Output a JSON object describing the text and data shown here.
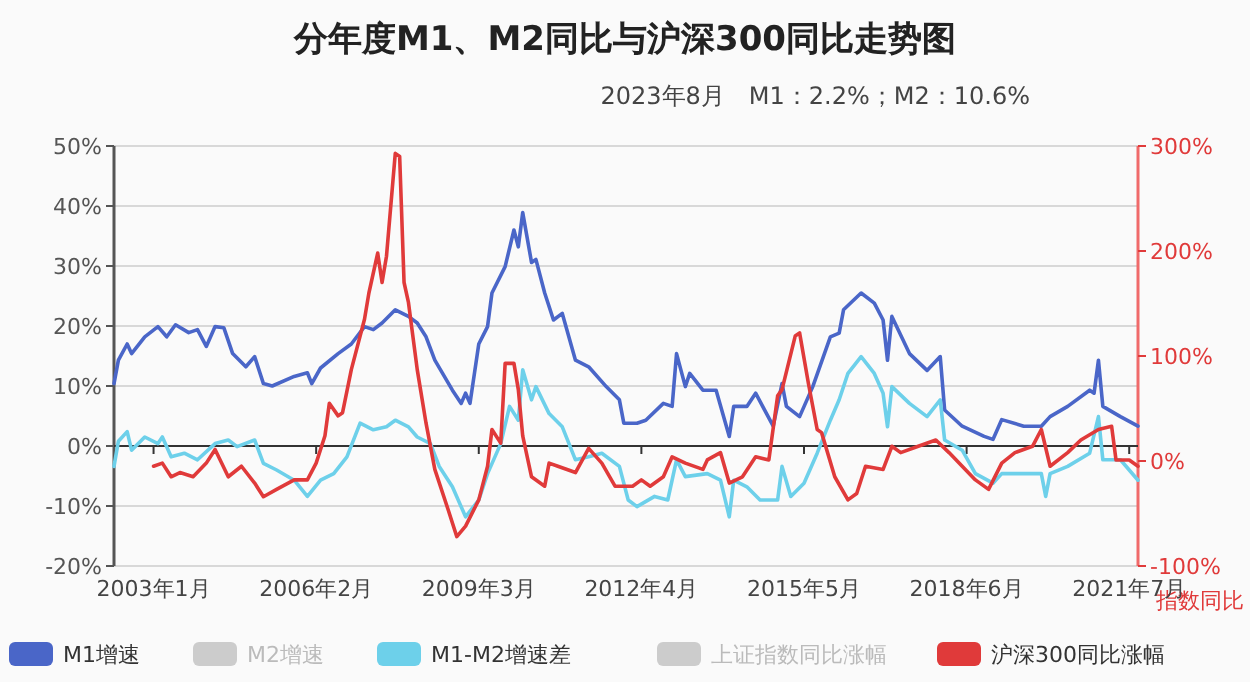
{
  "chart_data": {
    "type": "line",
    "title": "分年度M1、M2同比与沪深300同比走势图",
    "annotations": [
      "2023年8月　M1：2.2%；M2：10.6%"
    ],
    "y2label": "指数同比",
    "xlim": [
      "2002-04",
      "2021-09"
    ],
    "xticks": [
      {
        "value": "2003-01",
        "label": "2003年1月"
      },
      {
        "value": "2006-02",
        "label": "2006年2月"
      },
      {
        "value": "2009-03",
        "label": "2009年3月"
      },
      {
        "value": "2012-04",
        "label": "2012年4月"
      },
      {
        "value": "2015-05",
        "label": "2015年5月"
      },
      {
        "value": "2018-06",
        "label": "2018年6月"
      },
      {
        "value": "2021-07",
        "label": "2021年7月"
      }
    ],
    "ylim": [
      -20,
      50
    ],
    "yticks": [
      {
        "value": -20,
        "label": "-20%"
      },
      {
        "value": -10,
        "label": "-10%"
      },
      {
        "value": 0,
        "label": "0%"
      },
      {
        "value": 10,
        "label": "10%"
      },
      {
        "value": 20,
        "label": "20%"
      },
      {
        "value": 30,
        "label": "30%"
      },
      {
        "value": 40,
        "label": "40%"
      },
      {
        "value": 50,
        "label": "50%"
      }
    ],
    "y2lim": [
      -100,
      300
    ],
    "y2ticks": [
      {
        "value": -100,
        "label": "-100%"
      },
      {
        "value": 0,
        "label": "0%"
      },
      {
        "value": 100,
        "label": "100%"
      },
      {
        "value": 200,
        "label": "200%"
      },
      {
        "value": 300,
        "label": "300%"
      }
    ],
    "grid": "y",
    "legend": "bottom",
    "series": [
      {
        "name": "M1增速",
        "color": "#4a66c8",
        "x": [
          "2002-04",
          "2002-05",
          "2002-07",
          "2002-08",
          "2002-11",
          "2003-02",
          "2003-04",
          "2003-06",
          "2003-09",
          "2003-11",
          "2004-01",
          "2004-03",
          "2004-05",
          "2004-07",
          "2004-10",
          "2004-12",
          "2005-02",
          "2005-04",
          "2005-09",
          "2005-12",
          "2006-01",
          "2006-03",
          "2006-07",
          "2006-10",
          "2007-01",
          "2007-03",
          "2007-05",
          "2007-08",
          "2007-11",
          "2008-01",
          "2008-03",
          "2008-05",
          "2008-09",
          "2008-11",
          "2008-12",
          "2009-01",
          "2009-03",
          "2009-05",
          "2009-06",
          "2009-09",
          "2009-11",
          "2009-12",
          "2010-01",
          "2010-03",
          "2010-04",
          "2010-06",
          "2010-08",
          "2010-10",
          "2011-01",
          "2011-04",
          "2011-08",
          "2011-11",
          "2011-12",
          "2012-03",
          "2012-05",
          "2012-09",
          "2012-11",
          "2012-12",
          "2013-02",
          "2013-03",
          "2013-06",
          "2013-09",
          "2013-12",
          "2014-01",
          "2014-04",
          "2014-06",
          "2014-10",
          "2014-12",
          "2015-01",
          "2015-04",
          "2015-07",
          "2015-11",
          "2016-01",
          "2016-02",
          "2016-06",
          "2016-09",
          "2016-11",
          "2016-12",
          "2017-01",
          "2017-05",
          "2017-09",
          "2017-12",
          "2018-01",
          "2018-05",
          "2018-10",
          "2018-12",
          "2019-02",
          "2019-07",
          "2019-11",
          "2020-01",
          "2020-05",
          "2020-10",
          "2020-11",
          "2020-12",
          "2021-01",
          "2021-05",
          "2021-09"
        ],
        "values": [
          10.4,
          14.3,
          17,
          15.4,
          18.2,
          19.9,
          18.2,
          20.2,
          18.9,
          19.4,
          16.6,
          19.9,
          19.7,
          15.4,
          13.2,
          14.9,
          10.4,
          10,
          11.6,
          12.2,
          10.4,
          13,
          15.4,
          17,
          19.9,
          19.4,
          20.5,
          22.7,
          21.6,
          20.5,
          18.2,
          14.3,
          9.3,
          7.1,
          8.8,
          7.1,
          17,
          19.9,
          25.5,
          29.9,
          36,
          33.2,
          38.9,
          30.6,
          31.1,
          25.5,
          21,
          22.1,
          14.3,
          13.2,
          9.9,
          7.7,
          3.8,
          3.8,
          4.3,
          7.1,
          6.6,
          15.4,
          9.9,
          12.1,
          9.3,
          9.3,
          1.6,
          6.6,
          6.6,
          8.8,
          3.3,
          10.4,
          6.6,
          4.9,
          9.9,
          18.2,
          18.8,
          22.7,
          25.5,
          23.8,
          21,
          14.3,
          21.6,
          15.4,
          12.6,
          14.9,
          6,
          3.3,
          1.6,
          1.1,
          4.4,
          3.3,
          3.3,
          4.9,
          6.6,
          9.3,
          8.8,
          14.3,
          6.6,
          4.9,
          3.3
        ]
      },
      {
        "name": "M2增速",
        "color": "#cccccc"
      },
      {
        "name": "M1-M2增速差",
        "color": "#6dd0ea",
        "x": [
          "2002-04",
          "2002-05",
          "2002-07",
          "2002-08",
          "2002-11",
          "2003-02",
          "2003-03",
          "2003-05",
          "2003-08",
          "2003-11",
          "2004-03",
          "2004-06",
          "2004-08",
          "2004-12",
          "2005-02",
          "2005-05",
          "2005-09",
          "2005-12",
          "2006-03",
          "2006-06",
          "2006-09",
          "2006-12",
          "2007-03",
          "2007-06",
          "2007-08",
          "2007-11",
          "2008-01",
          "2008-04",
          "2008-06",
          "2008-09",
          "2008-12",
          "2009-03",
          "2009-05",
          "2009-08",
          "2009-10",
          "2009-12",
          "2010-01",
          "2010-03",
          "2010-04",
          "2010-07",
          "2010-10",
          "2011-01",
          "2011-04",
          "2011-07",
          "2011-11",
          "2012-01",
          "2012-03",
          "2012-07",
          "2012-10",
          "2012-12",
          "2013-02",
          "2013-07",
          "2013-10",
          "2013-12",
          "2014-01",
          "2014-04",
          "2014-07",
          "2014-11",
          "2014-12",
          "2015-02",
          "2015-05",
          "2015-08",
          "2015-11",
          "2016-01",
          "2016-03",
          "2016-06",
          "2016-09",
          "2016-11",
          "2016-12",
          "2017-01",
          "2017-05",
          "2017-09",
          "2017-12",
          "2018-01",
          "2018-05",
          "2018-08",
          "2018-12",
          "2019-02",
          "2019-07",
          "2019-11",
          "2019-12",
          "2020-01",
          "2020-05",
          "2020-10",
          "2020-12",
          "2021-01",
          "2021-05",
          "2021-09"
        ],
        "values": [
          -3.4,
          0.8,
          2.4,
          -0.7,
          1.5,
          0.4,
          1.5,
          -1.8,
          -1.2,
          -2.3,
          0.4,
          1,
          -0.1,
          1,
          -2.9,
          -4,
          -5.7,
          -8.4,
          -5.7,
          -4.6,
          -1.8,
          3.8,
          2.7,
          3.2,
          4.3,
          3.2,
          1.5,
          0.4,
          -3.4,
          -6.8,
          -11.8,
          -9,
          -4.6,
          0.4,
          6.6,
          4.3,
          12.7,
          7.7,
          9.9,
          5.4,
          3.2,
          -2.3,
          -1.8,
          -1.2,
          -3.4,
          -9,
          -10.1,
          -8.4,
          -9,
          -2.3,
          -5.1,
          -4.6,
          -5.7,
          -11.8,
          -5.7,
          -6.8,
          -9,
          -9,
          -3.4,
          -8.4,
          -6.2,
          -1.2,
          4.3,
          7.7,
          12.1,
          14.9,
          12.1,
          8.8,
          3.2,
          9.9,
          7.1,
          4.9,
          7.7,
          1,
          -0.7,
          -4.6,
          -6.2,
          -4.6,
          -4.6,
          -4.6,
          -8.4,
          -4.6,
          -3.4,
          -1.2,
          4.9,
          -2.3,
          -2.3,
          -5.7
        ]
      },
      {
        "name": "上证指数同比涨幅",
        "color": "#cccccc"
      },
      {
        "name": "沪深300同比涨幅",
        "color": "#e03a3a",
        "axis": "y2",
        "x": [
          "2003-01",
          "2003-03",
          "2003-05",
          "2003-07",
          "2003-10",
          "2004-01",
          "2004-03",
          "2004-06",
          "2004-09",
          "2004-12",
          "2005-02",
          "2005-05",
          "2005-09",
          "2005-12",
          "2006-02",
          "2006-04",
          "2006-05",
          "2006-07",
          "2006-08",
          "2006-10",
          "2007-01",
          "2007-02",
          "2007-04",
          "2007-05",
          "2007-06",
          "2007-08",
          "2007-09",
          "2007-10",
          "2007-11",
          "2008-01",
          "2008-03",
          "2008-05",
          "2008-08",
          "2008-10",
          "2008-12",
          "2009-03",
          "2009-05",
          "2009-06",
          "2009-08",
          "2009-09",
          "2009-11",
          "2009-12",
          "2010-01",
          "2010-03",
          "2010-06",
          "2010-07",
          "2010-09",
          "2011-01",
          "2011-04",
          "2011-07",
          "2011-10",
          "2012-02",
          "2012-04",
          "2012-06",
          "2012-09",
          "2012-11",
          "2013-02",
          "2013-06",
          "2013-07",
          "2013-10",
          "2013-12",
          "2014-03",
          "2014-06",
          "2014-09",
          "2014-11",
          "2014-12",
          "2015-03",
          "2015-04",
          "2015-06",
          "2015-08",
          "2015-09",
          "2015-12",
          "2016-03",
          "2016-05",
          "2016-07",
          "2016-11",
          "2017-01",
          "2017-03",
          "2017-07",
          "2017-11",
          "2018-02",
          "2018-05",
          "2018-08",
          "2018-11",
          "2019-02",
          "2019-05",
          "2019-09",
          "2019-11",
          "2020-01",
          "2020-05",
          "2020-08",
          "2020-12",
          "2021-03",
          "2021-04",
          "2021-07",
          "2021-09"
        ],
        "values": [
          -5,
          -2,
          -15,
          -11,
          -15,
          -2,
          11,
          -15,
          -5,
          -21,
          -34,
          -27,
          -18,
          -18,
          -2,
          24,
          55,
          43,
          46,
          87,
          135,
          160,
          198,
          170,
          195,
          293,
          290,
          170,
          151,
          87,
          36,
          -8,
          -46,
          -72,
          -62,
          -37,
          -5,
          30,
          17,
          93,
          93,
          68,
          24,
          -15,
          -24,
          -2,
          -5,
          -11,
          12,
          -2,
          -24,
          -24,
          -18,
          -24,
          -15,
          4,
          -2,
          -8,
          1,
          8,
          -21,
          -15,
          4,
          1,
          62,
          68,
          119,
          122,
          74,
          30,
          27,
          -15,
          -37,
          -31,
          -5,
          -8,
          14,
          8,
          14,
          20,
          8,
          -5,
          -18,
          -27,
          -2,
          8,
          14,
          30,
          -5,
          8,
          20,
          30,
          33,
          1,
          1,
          -5
        ]
      }
    ]
  }
}
